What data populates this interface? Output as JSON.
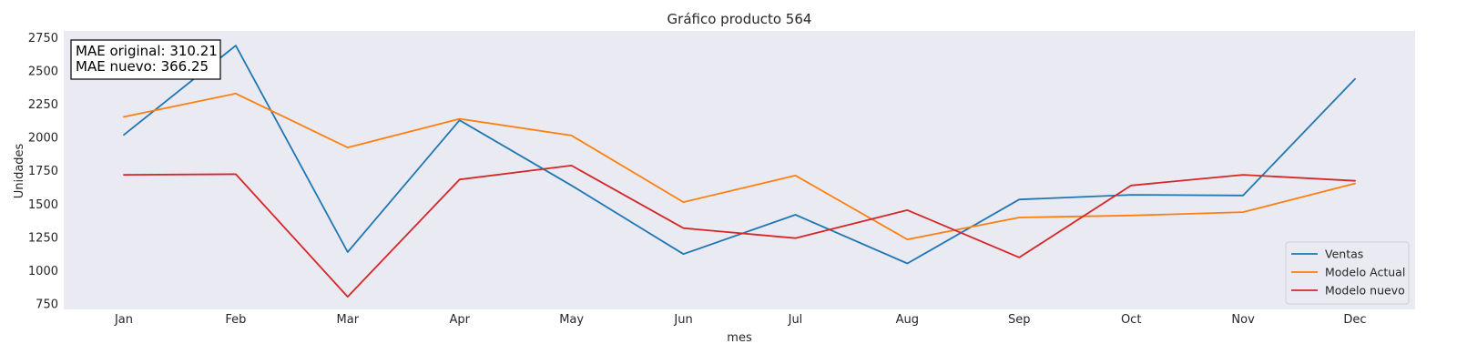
{
  "chart_data": {
    "type": "line",
    "title": "Gráfico producto 564",
    "xlabel": "mes",
    "ylabel": "Unidades",
    "categories": [
      "Jan",
      "Feb",
      "Mar",
      "Apr",
      "May",
      "Jun",
      "Jul",
      "Aug",
      "Sep",
      "Oct",
      "Nov",
      "Dec"
    ],
    "y_ticks": [
      750,
      1000,
      1250,
      1500,
      1750,
      2000,
      2250,
      2500,
      2750
    ],
    "ylim": [
      710,
      2800
    ],
    "grid": false,
    "legend_position": "lower-right",
    "series": [
      {
        "name": "Ventas",
        "color": "#1f77b4",
        "values": [
          2020,
          2690,
          1140,
          2130,
          1640,
          1125,
          1420,
          1055,
          1535,
          1570,
          1565,
          2440
        ]
      },
      {
        "name": "Modelo Actual",
        "color": "#ff7f0e",
        "values": [
          2155,
          2330,
          1925,
          2140,
          2015,
          1515,
          1715,
          1235,
          1400,
          1415,
          1440,
          1655
        ]
      },
      {
        "name": "Modelo nuevo",
        "color": "#d62728",
        "values": [
          1720,
          1725,
          805,
          1685,
          1790,
          1320,
          1245,
          1455,
          1100,
          1640,
          1720,
          1675
        ]
      }
    ],
    "annotation": {
      "line1": "MAE original: 310.21",
      "line2": "MAE nuevo: 366.25"
    }
  }
}
